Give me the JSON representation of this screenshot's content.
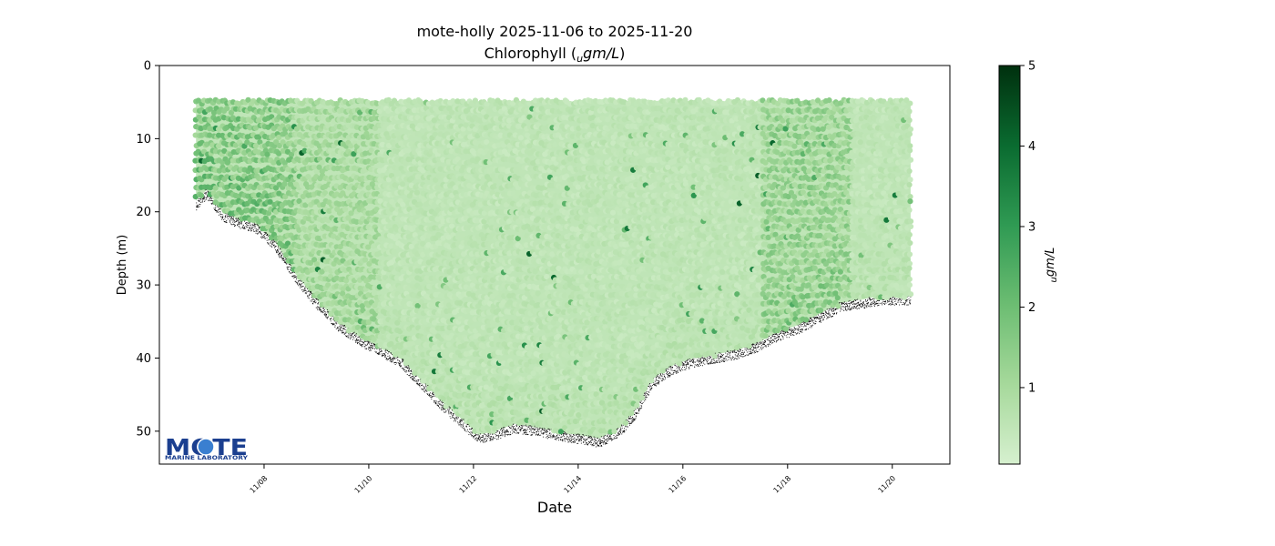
{
  "chart_data": {
    "type": "scatter",
    "title": "mote-holly 2025-11-06 to 2025-11-20",
    "subtitle_prefix": "Chlorophyll (",
    "subtitle_unit_sub": "u",
    "subtitle_unit_main": "gm/L",
    "subtitle_suffix": ")",
    "xlabel": "Date",
    "ylabel": "Depth (m)",
    "x_tick_labels": [
      "11/08",
      "11/10",
      "11/12",
      "11/14",
      "11/16",
      "11/18",
      "11/20"
    ],
    "x_tick_days": [
      8,
      10,
      12,
      14,
      16,
      18,
      20
    ],
    "xlim_days": [
      6.0,
      21.1
    ],
    "y_ticks": [
      0,
      10,
      20,
      30,
      40,
      50
    ],
    "ylim": [
      0,
      54.5
    ],
    "y_inverted": true,
    "colorbar": {
      "label_sub": "u",
      "label_main": "gm/L",
      "ticks": [
        1,
        2,
        3,
        4,
        5
      ],
      "range": [
        0.05,
        5
      ],
      "colormap": "Greens",
      "color_low": "#d6f0cf",
      "color_high": "#00300e"
    },
    "profile_start_depth_m": 5,
    "profile_x_range_days": [
      6.7,
      20.35
    ],
    "bottom_depth_profile": {
      "day": [
        6.7,
        6.9,
        7.2,
        7.5,
        7.8,
        8.2,
        8.6,
        9.0,
        9.4,
        9.8,
        10.2,
        10.6,
        11.0,
        11.4,
        11.8,
        12.1,
        12.4,
        12.8,
        13.2,
        13.6,
        14.0,
        14.4,
        14.8,
        15.1,
        15.4,
        15.8,
        16.2,
        16.6,
        17.0,
        17.4,
        17.8,
        18.2,
        18.6,
        19.0,
        19.4,
        19.8,
        20.35
      ],
      "depth": [
        18.5,
        17.0,
        20.0,
        21.0,
        21.5,
        24.0,
        28.5,
        32.0,
        35.0,
        37.0,
        38.5,
        40.0,
        43.0,
        46.0,
        48.5,
        50.5,
        50.0,
        49.0,
        49.5,
        50.0,
        50.5,
        51.0,
        49.5,
        47.0,
        43.0,
        41.0,
        40.0,
        39.5,
        39.0,
        38.0,
        36.5,
        35.5,
        34.0,
        32.5,
        32.0,
        31.5,
        31.5
      ]
    },
    "high_chlorophyll_zones": [
      {
        "day_from": 6.7,
        "day_to": 8.6,
        "level": 1.6
      },
      {
        "day_from": 8.6,
        "day_to": 10.2,
        "level": 1.0
      },
      {
        "day_from": 17.5,
        "day_to": 19.2,
        "level": 1.3
      }
    ],
    "background_level": 0.55,
    "logo_text": "MOTE",
    "logo_subtext": "MARINE LABORATORY"
  }
}
